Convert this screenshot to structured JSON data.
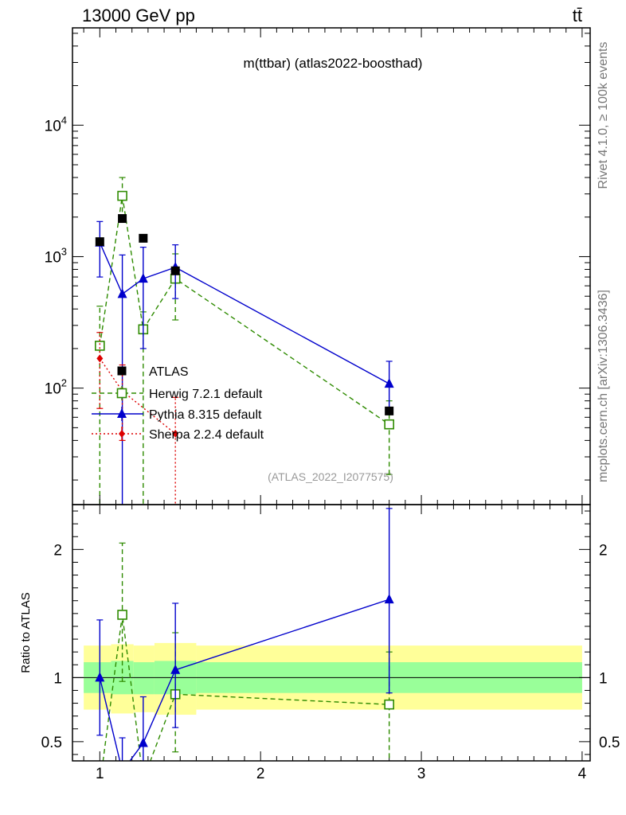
{
  "header": {
    "energy_label": "13000 GeV pp",
    "process_label": "tt̄"
  },
  "side_labels": {
    "rivet": "Rivet 4.1.0, ≥ 100k events",
    "mcplots": "mcplots.cern.ch [arXiv:1306.3436]"
  },
  "chart_data": {
    "type": "line",
    "title": "m(ttbar) (atlas2022-boosthad)",
    "analysis_id": "(ATLAS_2022_I2077575)",
    "xlabel": "",
    "ylabel_ratio": "Ratio to ATLAS",
    "xlim": [
      0.83,
      4.05
    ],
    "ylim_main": [
      13,
      55000
    ],
    "ylim_ratio": [
      0.35,
      2.35
    ],
    "yscale_main": "log",
    "x_ticks": [
      1,
      2,
      3,
      4
    ],
    "x_tick_labels": [
      "1",
      "2",
      "3",
      "4"
    ],
    "main_y_tick_labels": [
      "10^2",
      "10^3",
      "10^4"
    ],
    "ratio_y_ticks": [
      0.5,
      1,
      2
    ],
    "ratio_y_tick_labels": [
      "0.5",
      "1",
      "2"
    ],
    "legend_position": "center-left",
    "data_series": {
      "name": "ATLAS",
      "color": "#000000",
      "x": [
        1.0,
        1.14,
        1.27,
        1.47,
        2.8
      ],
      "y": [
        1300,
        1950,
        1380,
        780,
        67
      ]
    },
    "series": [
      {
        "name": "Herwig 7.2.1 default",
        "color": "#2e8b00",
        "marker": "open-square",
        "line": "dashed",
        "x": [
          1.0,
          1.14,
          1.27,
          1.47,
          2.8
        ],
        "y": [
          210,
          2900,
          280,
          680,
          53
        ],
        "y_low": [
          10,
          1900,
          10,
          330,
          22
        ],
        "y_high": [
          420,
          4000,
          380,
          1050,
          80
        ],
        "ratio": [
          0.16,
          1.49,
          0.2,
          0.87,
          0.79
        ],
        "ratio_low": [
          0.0,
          0.97,
          0.0,
          0.42,
          0.0
        ],
        "ratio_high": [
          0.33,
          2.05,
          0.28,
          1.35,
          1.2
        ]
      },
      {
        "name": "Pythia 8.315 default",
        "color": "#0000cc",
        "marker": "filled-triangle",
        "line": "solid",
        "x": [
          1.0,
          1.14,
          1.27,
          1.47,
          2.8
        ],
        "y": [
          1280,
          520,
          680,
          830,
          108
        ],
        "y_low": [
          700,
          10,
          200,
          480,
          70
        ],
        "y_high": [
          1850,
          1030,
          1180,
          1230,
          160
        ],
        "ratio": [
          1.0,
          0.27,
          0.49,
          1.06,
          1.61
        ],
        "ratio_low": [
          0.55,
          0.0,
          0.14,
          0.61,
          0.88
        ],
        "ratio_high": [
          1.45,
          0.53,
          0.85,
          1.58,
          2.32
        ]
      },
      {
        "name": "Sherpa 2.2.4 default",
        "color": "#dd0000",
        "marker": "filled-diamond",
        "line": "dotted",
        "x": [
          1.0,
          1.14,
          1.47
        ],
        "y": [
          168,
          95,
          45
        ],
        "y_low": [
          70,
          40,
          5
        ],
        "y_high": [
          265,
          150,
          85
        ]
      }
    ],
    "uncertainty_band": {
      "x_edges": [
        0.9,
        1.07,
        1.21,
        1.34,
        1.6,
        4.0
      ],
      "inner_low": [
        0.88,
        0.87,
        0.87,
        0.87,
        0.88
      ],
      "inner_high": [
        1.12,
        1.13,
        1.12,
        1.13,
        1.12
      ],
      "outer_low": [
        0.75,
        0.72,
        0.73,
        0.71,
        0.75
      ],
      "outer_high": [
        1.25,
        1.26,
        1.25,
        1.27,
        1.25
      ],
      "inner_color": "#99ff99",
      "outer_color": "#ffff99"
    }
  }
}
